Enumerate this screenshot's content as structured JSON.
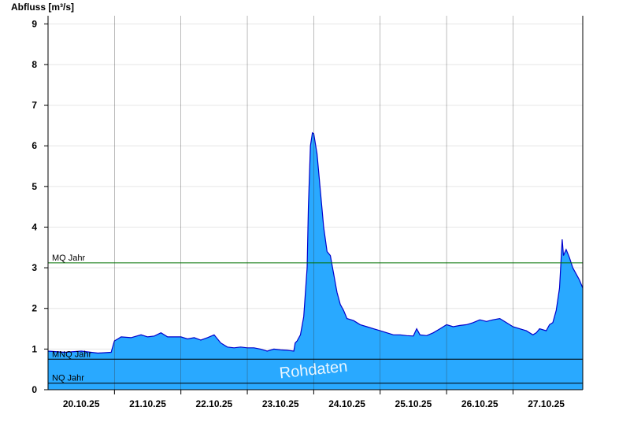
{
  "chart_data": {
    "type": "area",
    "ylabel": "Abfluss [m³/s]",
    "xlabel": "",
    "ylim": [
      0,
      9.2
    ],
    "xlim": [
      0,
      8.05
    ],
    "yticks": [
      0,
      1,
      2,
      3,
      4,
      5,
      6,
      7,
      8,
      9
    ],
    "xticks": [
      {
        "pos": 0.5,
        "label": "20.10.25"
      },
      {
        "pos": 1.5,
        "label": "21.10.25"
      },
      {
        "pos": 2.5,
        "label": "22.10.25"
      },
      {
        "pos": 3.5,
        "label": "23.10.25"
      },
      {
        "pos": 4.5,
        "label": "24.10.25"
      },
      {
        "pos": 5.5,
        "label": "25.10.25"
      },
      {
        "pos": 6.5,
        "label": "26.10.25"
      },
      {
        "pos": 7.5,
        "label": "27.10.25"
      }
    ],
    "grid": true,
    "fill_color": "#29a9ff",
    "line_color": "#0000cc",
    "reference_lines": [
      {
        "label": "MQ Jahr",
        "value": 3.12,
        "color": "#007000"
      },
      {
        "label": "MNQ Jahr",
        "value": 0.75,
        "color": "#000000"
      },
      {
        "label": "NQ Jahr",
        "value": 0.16,
        "color": "#000000"
      }
    ],
    "watermark": "Rohdaten",
    "series": [
      {
        "x": [
          0.0,
          0.25,
          0.5,
          0.75,
          0.95,
          1.0,
          1.05,
          1.1,
          1.25,
          1.4,
          1.5,
          1.6,
          1.7,
          1.8,
          1.9,
          2.0,
          2.1,
          2.2,
          2.3,
          2.4,
          2.5,
          2.6,
          2.7,
          2.8,
          2.9,
          3.0,
          3.1,
          3.2,
          3.3,
          3.4,
          3.5,
          3.6,
          3.7,
          3.72,
          3.75,
          3.8,
          3.85,
          3.9,
          3.92,
          3.95,
          3.98,
          4.0,
          4.05,
          4.1,
          4.15,
          4.2,
          4.25,
          4.3,
          4.35,
          4.4,
          4.45,
          4.5,
          4.6,
          4.7,
          4.8,
          4.9,
          5.0,
          5.1,
          5.2,
          5.3,
          5.4,
          5.5,
          5.55,
          5.6,
          5.7,
          5.8,
          5.9,
          6.0,
          6.1,
          6.2,
          6.3,
          6.4,
          6.5,
          6.6,
          6.7,
          6.8,
          6.9,
          7.0,
          7.1,
          7.2,
          7.3,
          7.35,
          7.4,
          7.5,
          7.55,
          7.6,
          7.65,
          7.7,
          7.72,
          7.74,
          7.76,
          7.8,
          7.85,
          7.9,
          7.95,
          8.0,
          8.05
        ],
        "values": [
          0.95,
          0.92,
          0.95,
          0.9,
          0.92,
          1.2,
          1.25,
          1.3,
          1.28,
          1.35,
          1.3,
          1.32,
          1.4,
          1.3,
          1.3,
          1.3,
          1.25,
          1.28,
          1.22,
          1.28,
          1.35,
          1.15,
          1.05,
          1.03,
          1.05,
          1.03,
          1.03,
          1.0,
          0.95,
          1.0,
          0.98,
          0.97,
          0.95,
          1.15,
          1.2,
          1.35,
          1.8,
          3.0,
          4.5,
          6.0,
          6.32,
          6.3,
          5.8,
          4.9,
          4.0,
          3.4,
          3.3,
          2.85,
          2.4,
          2.1,
          1.95,
          1.75,
          1.7,
          1.6,
          1.55,
          1.5,
          1.45,
          1.4,
          1.35,
          1.35,
          1.33,
          1.32,
          1.5,
          1.35,
          1.33,
          1.4,
          1.5,
          1.6,
          1.55,
          1.58,
          1.6,
          1.65,
          1.72,
          1.68,
          1.72,
          1.75,
          1.65,
          1.55,
          1.5,
          1.45,
          1.35,
          1.4,
          1.5,
          1.45,
          1.6,
          1.65,
          1.95,
          2.5,
          3.1,
          3.7,
          3.3,
          3.45,
          3.25,
          3.0,
          2.85,
          2.7,
          2.5
        ]
      }
    ]
  }
}
